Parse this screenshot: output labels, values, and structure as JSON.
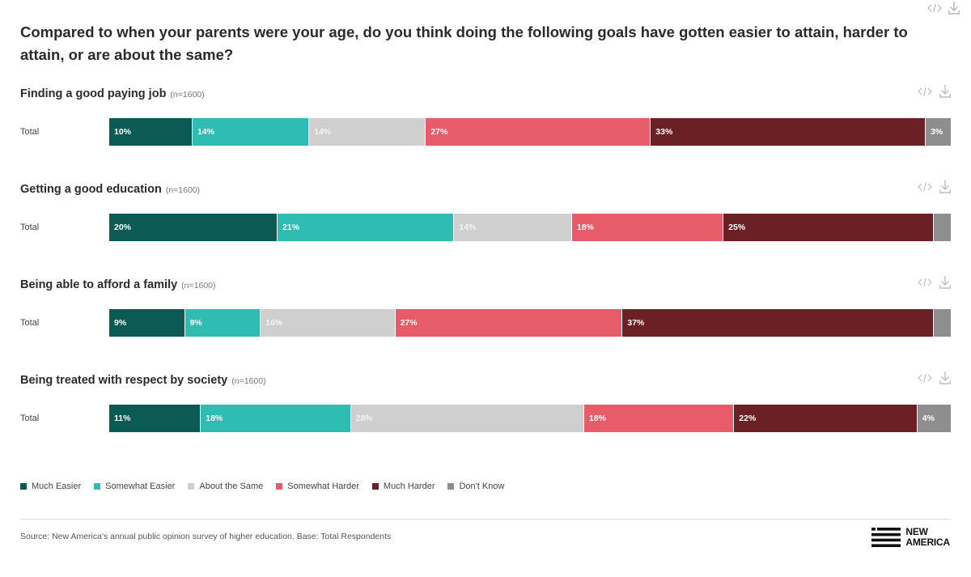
{
  "title": "Compared to when your parents were your age, do you think doing the following goals have gotten easier to attain, harder to attain, or are about the same?",
  "icons": {
    "embed": "code-embed-icon",
    "download": "download-icon"
  },
  "chart_data": [
    {
      "type": "bar",
      "stacked": true,
      "orientation": "horizontal",
      "title": "Finding a good paying job",
      "n_label": "(n=1600)",
      "categories": [
        "Total"
      ],
      "series": [
        {
          "name": "Much Easier",
          "values": [
            10
          ],
          "label": "10%"
        },
        {
          "name": "Somewhat Easier",
          "values": [
            14
          ],
          "label": "14%"
        },
        {
          "name": "About the Same",
          "values": [
            14
          ],
          "label": "14%"
        },
        {
          "name": "Somewhat Harder",
          "values": [
            27
          ],
          "label": "27%"
        },
        {
          "name": "Much Harder",
          "values": [
            33
          ],
          "label": "33%"
        },
        {
          "name": "Don't Know",
          "values": [
            3
          ],
          "label": "3%"
        }
      ]
    },
    {
      "type": "bar",
      "stacked": true,
      "orientation": "horizontal",
      "title": "Getting a good education",
      "n_label": "(n=1600)",
      "categories": [
        "Total"
      ],
      "series": [
        {
          "name": "Much Easier",
          "values": [
            20
          ],
          "label": "20%"
        },
        {
          "name": "Somewhat Easier",
          "values": [
            21
          ],
          "label": "21%"
        },
        {
          "name": "About the Same",
          "values": [
            14
          ],
          "label": "14%"
        },
        {
          "name": "Somewhat Harder",
          "values": [
            18
          ],
          "label": "18%"
        },
        {
          "name": "Much Harder",
          "values": [
            25
          ],
          "label": "25%"
        },
        {
          "name": "Don't Know",
          "values": [
            2
          ],
          "label": ""
        }
      ]
    },
    {
      "type": "bar",
      "stacked": true,
      "orientation": "horizontal",
      "title": "Being able to afford a family",
      "n_label": "(n=1600)",
      "categories": [
        "Total"
      ],
      "series": [
        {
          "name": "Much Easier",
          "values": [
            9
          ],
          "label": "9%"
        },
        {
          "name": "Somewhat Easier",
          "values": [
            9
          ],
          "label": "9%"
        },
        {
          "name": "About the Same",
          "values": [
            16
          ],
          "label": "16%"
        },
        {
          "name": "Somewhat Harder",
          "values": [
            27
          ],
          "label": "27%"
        },
        {
          "name": "Much Harder",
          "values": [
            37
          ],
          "label": "37%"
        },
        {
          "name": "Don't Know",
          "values": [
            2
          ],
          "label": ""
        }
      ]
    },
    {
      "type": "bar",
      "stacked": true,
      "orientation": "horizontal",
      "title": "Being treated with respect by society",
      "n_label": "(n=1600)",
      "categories": [
        "Total"
      ],
      "series": [
        {
          "name": "Much Easier",
          "values": [
            11
          ],
          "label": "11%"
        },
        {
          "name": "Somewhat Easier",
          "values": [
            18
          ],
          "label": "18%"
        },
        {
          "name": "About the Same",
          "values": [
            28
          ],
          "label": "28%"
        },
        {
          "name": "Somewhat Harder",
          "values": [
            18
          ],
          "label": "18%"
        },
        {
          "name": "Much Harder",
          "values": [
            22
          ],
          "label": "22%"
        },
        {
          "name": "Don't Know",
          "values": [
            4
          ],
          "label": "4%"
        }
      ]
    }
  ],
  "legend": [
    {
      "label": "Much Easier",
      "color": "#0b5a53"
    },
    {
      "label": "Somewhat Easier",
      "color": "#2ebcb3"
    },
    {
      "label": "About the Same",
      "color": "#cfcfcf"
    },
    {
      "label": "Somewhat Harder",
      "color": "#e85b68"
    },
    {
      "label": "Much Harder",
      "color": "#6b2025"
    },
    {
      "label": "Don't Know",
      "color": "#8e8e8e"
    }
  ],
  "source": "Source: New America's annual public opinion survey of higher education. Base: Total Respondents",
  "logo": {
    "line1": "NEW",
    "line2": "AMERICA"
  }
}
